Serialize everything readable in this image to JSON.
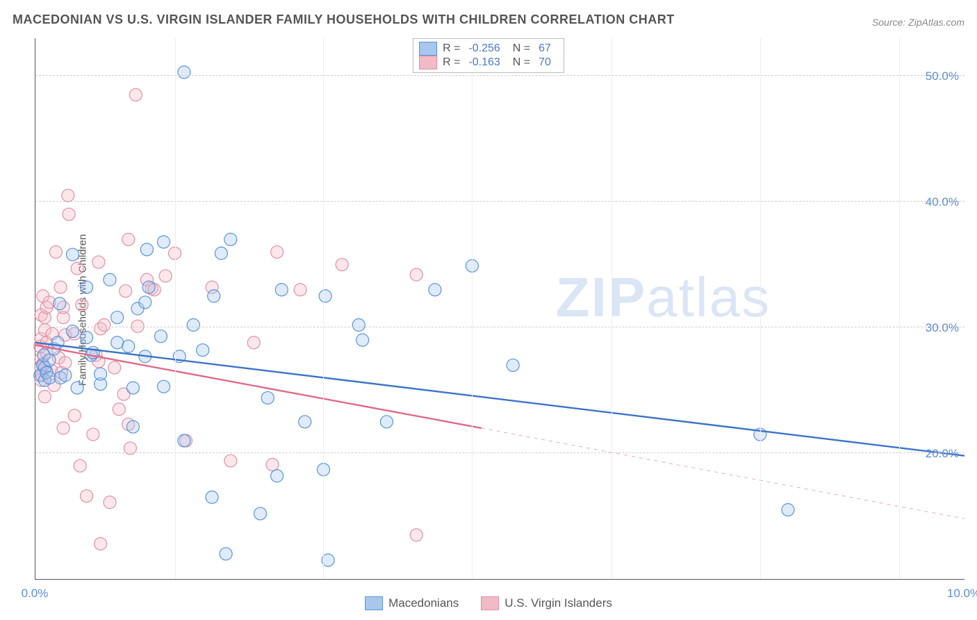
{
  "title": "MACEDONIAN VS U.S. VIRGIN ISLANDER FAMILY HOUSEHOLDS WITH CHILDREN CORRELATION CHART",
  "source": "Source: ZipAtlas.com",
  "y_axis_label": "Family Households with Children",
  "watermark_bold": "ZIP",
  "watermark_rest": "atlas",
  "chart": {
    "type": "scatter",
    "xlim": [
      0,
      10
    ],
    "ylim": [
      10,
      53
    ],
    "x_ticks": [
      0,
      10
    ],
    "x_tick_labels": [
      "0.0%",
      "10.0%"
    ],
    "y_ticks": [
      20,
      30,
      40,
      50
    ],
    "y_tick_labels": [
      "20.0%",
      "30.0%",
      "40.0%",
      "50.0%"
    ],
    "x_minor_ticks": [
      1.5,
      3.1,
      4.7,
      6.2,
      7.8,
      9.3
    ],
    "background_color": "#ffffff",
    "grid_color": "#cccccc",
    "marker_radius": 9,
    "marker_fill_opacity": 0.35,
    "marker_stroke_width": 1.2,
    "trend_line_width": 2.4,
    "series": [
      {
        "name": "Macedonians",
        "color_stroke": "#5594e0",
        "color_fill": "#a7c7ed",
        "line_color": "#3b73c9",
        "R": "-0.256",
        "N": "67",
        "trend": {
          "x1": 0,
          "y1": 28.8,
          "x2": 10,
          "y2": 19.8
        },
        "dash_extend": null,
        "points": [
          [
            0.05,
            26.2
          ],
          [
            0.08,
            27.0
          ],
          [
            0.09,
            27.8
          ],
          [
            0.1,
            25.8
          ],
          [
            0.1,
            26.8
          ],
          [
            0.12,
            26.4
          ],
          [
            0.15,
            26.0
          ],
          [
            0.15,
            27.4
          ],
          [
            0.2,
            28.3
          ],
          [
            0.24,
            28.8
          ],
          [
            0.26,
            31.9
          ],
          [
            0.27,
            26.0
          ],
          [
            0.32,
            26.2
          ],
          [
            0.4,
            35.8
          ],
          [
            0.4,
            29.7
          ],
          [
            0.45,
            25.2
          ],
          [
            0.55,
            29.2
          ],
          [
            0.55,
            33.2
          ],
          [
            0.6,
            27.8
          ],
          [
            0.62,
            28.0
          ],
          [
            0.7,
            25.5
          ],
          [
            0.7,
            26.3
          ],
          [
            0.8,
            33.8
          ],
          [
            0.88,
            30.8
          ],
          [
            0.88,
            28.8
          ],
          [
            1.0,
            28.5
          ],
          [
            1.05,
            25.2
          ],
          [
            1.05,
            22.1
          ],
          [
            1.1,
            31.5
          ],
          [
            1.18,
            27.7
          ],
          [
            1.18,
            32.0
          ],
          [
            1.2,
            36.2
          ],
          [
            1.22,
            33.2
          ],
          [
            1.35,
            29.3
          ],
          [
            1.38,
            25.3
          ],
          [
            1.38,
            36.8
          ],
          [
            1.55,
            27.7
          ],
          [
            1.6,
            21.0
          ],
          [
            1.6,
            50.3
          ],
          [
            1.7,
            30.2
          ],
          [
            1.8,
            28.2
          ],
          [
            1.9,
            16.5
          ],
          [
            1.92,
            32.5
          ],
          [
            2.0,
            35.9
          ],
          [
            2.05,
            12.0
          ],
          [
            2.1,
            37.0
          ],
          [
            2.42,
            15.2
          ],
          [
            2.5,
            24.4
          ],
          [
            2.6,
            18.2
          ],
          [
            2.65,
            33.0
          ],
          [
            2.9,
            22.5
          ],
          [
            3.1,
            18.7
          ],
          [
            3.12,
            32.5
          ],
          [
            3.15,
            11.5
          ],
          [
            3.48,
            30.2
          ],
          [
            3.52,
            29.0
          ],
          [
            3.78,
            22.5
          ],
          [
            4.3,
            33.0
          ],
          [
            4.7,
            34.9
          ],
          [
            5.14,
            27.0
          ],
          [
            7.8,
            21.5
          ],
          [
            8.1,
            15.5
          ]
        ]
      },
      {
        "name": "U.S. Virgin Islanders",
        "color_stroke": "#e38fa3",
        "color_fill": "#f2b9c6",
        "line_color": "#e06a88",
        "R": "-0.163",
        "N": "70",
        "trend": {
          "x1": 0,
          "y1": 28.6,
          "x2": 4.8,
          "y2": 22.0
        },
        "dash_extend": {
          "x1": 4.8,
          "y1": 22.0,
          "x2": 10,
          "y2": 14.8
        },
        "points": [
          [
            0.05,
            28.5
          ],
          [
            0.06,
            27.5
          ],
          [
            0.06,
            29.1
          ],
          [
            0.06,
            31.0
          ],
          [
            0.06,
            26.8
          ],
          [
            0.06,
            25.8
          ],
          [
            0.07,
            26.2
          ],
          [
            0.08,
            32.5
          ],
          [
            0.08,
            27.1
          ],
          [
            0.1,
            29.8
          ],
          [
            0.1,
            30.8
          ],
          [
            0.1,
            24.5
          ],
          [
            0.12,
            26.5
          ],
          [
            0.12,
            28.0
          ],
          [
            0.12,
            28.8
          ],
          [
            0.12,
            31.6
          ],
          [
            0.15,
            32.0
          ],
          [
            0.17,
            26.6
          ],
          [
            0.18,
            29.5
          ],
          [
            0.2,
            25.4
          ],
          [
            0.22,
            36.0
          ],
          [
            0.25,
            27.6
          ],
          [
            0.27,
            33.2
          ],
          [
            0.28,
            26.4
          ],
          [
            0.3,
            30.8
          ],
          [
            0.3,
            31.6
          ],
          [
            0.3,
            22.0
          ],
          [
            0.32,
            27.2
          ],
          [
            0.32,
            29.4
          ],
          [
            0.35,
            40.5
          ],
          [
            0.36,
            39.0
          ],
          [
            0.42,
            29.5
          ],
          [
            0.42,
            23.0
          ],
          [
            0.45,
            34.7
          ],
          [
            0.48,
            19.0
          ],
          [
            0.5,
            31.8
          ],
          [
            0.55,
            16.6
          ],
          [
            0.62,
            21.5
          ],
          [
            0.65,
            27.8
          ],
          [
            0.68,
            27.3
          ],
          [
            0.68,
            35.2
          ],
          [
            0.7,
            12.8
          ],
          [
            0.7,
            29.9
          ],
          [
            0.74,
            30.2
          ],
          [
            0.8,
            16.1
          ],
          [
            0.85,
            26.8
          ],
          [
            0.9,
            23.5
          ],
          [
            0.95,
            24.7
          ],
          [
            0.97,
            32.9
          ],
          [
            1.0,
            37.0
          ],
          [
            1.0,
            22.3
          ],
          [
            1.02,
            20.4
          ],
          [
            1.08,
            48.5
          ],
          [
            1.1,
            30.1
          ],
          [
            1.2,
            33.8
          ],
          [
            1.25,
            33.1
          ],
          [
            1.28,
            33.0
          ],
          [
            1.4,
            34.1
          ],
          [
            1.5,
            35.9
          ],
          [
            1.62,
            21.0
          ],
          [
            1.9,
            33.2
          ],
          [
            2.1,
            19.4
          ],
          [
            2.35,
            28.8
          ],
          [
            2.55,
            19.1
          ],
          [
            2.6,
            36.0
          ],
          [
            2.85,
            33.0
          ],
          [
            3.3,
            35.0
          ],
          [
            4.1,
            13.5
          ],
          [
            4.1,
            34.2
          ]
        ]
      }
    ]
  },
  "legend": {
    "series1_label": "Macedonians",
    "series2_label": "U.S. Virgin Islanders"
  },
  "stats_labels": {
    "R": "R =",
    "N": "N ="
  }
}
